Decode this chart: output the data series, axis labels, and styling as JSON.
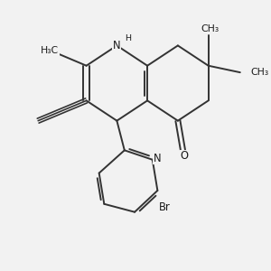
{
  "bg_color": "#f2f2f2",
  "line_color": "#333333",
  "text_color": "#1a1a1a",
  "lw": 1.4,
  "fs": 7.8,
  "xlim": [
    0,
    10
  ],
  "ylim": [
    0,
    10
  ],
  "N1": [
    4.55,
    8.35
  ],
  "C2": [
    3.35,
    7.6
  ],
  "C3": [
    3.35,
    6.3
  ],
  "C4": [
    4.55,
    5.55
  ],
  "C4a": [
    5.75,
    6.3
  ],
  "C8a": [
    5.75,
    7.6
  ],
  "C5": [
    6.95,
    5.55
  ],
  "C6": [
    8.15,
    6.3
  ],
  "C7": [
    8.15,
    7.6
  ],
  "C8": [
    6.95,
    8.35
  ],
  "O": [
    7.15,
    4.45
  ],
  "CH3_N1_x": 3.35,
  "CH3_N1_y": 8.9,
  "H3C_x": 2.1,
  "H3C_y": 8.1,
  "alk_end_x": 1.45,
  "alk_end_y": 5.55,
  "CH3_top_x": 8.15,
  "CH3_top_y": 8.75,
  "CH3_right_end_x": 9.4,
  "CH3_right_end_y": 7.35,
  "Pc2": [
    4.85,
    4.45
  ],
  "Pn": [
    5.95,
    4.1
  ],
  "Pc6": [
    6.15,
    2.95
  ],
  "Pc5": [
    5.25,
    2.15
  ],
  "Pc4": [
    4.05,
    2.45
  ],
  "Pc3": [
    3.85,
    3.6
  ],
  "N_lbl_x": 6.15,
  "N_lbl_y": 4.15,
  "Br_lbl_x": 6.3,
  "Br_lbl_y": 2.55
}
